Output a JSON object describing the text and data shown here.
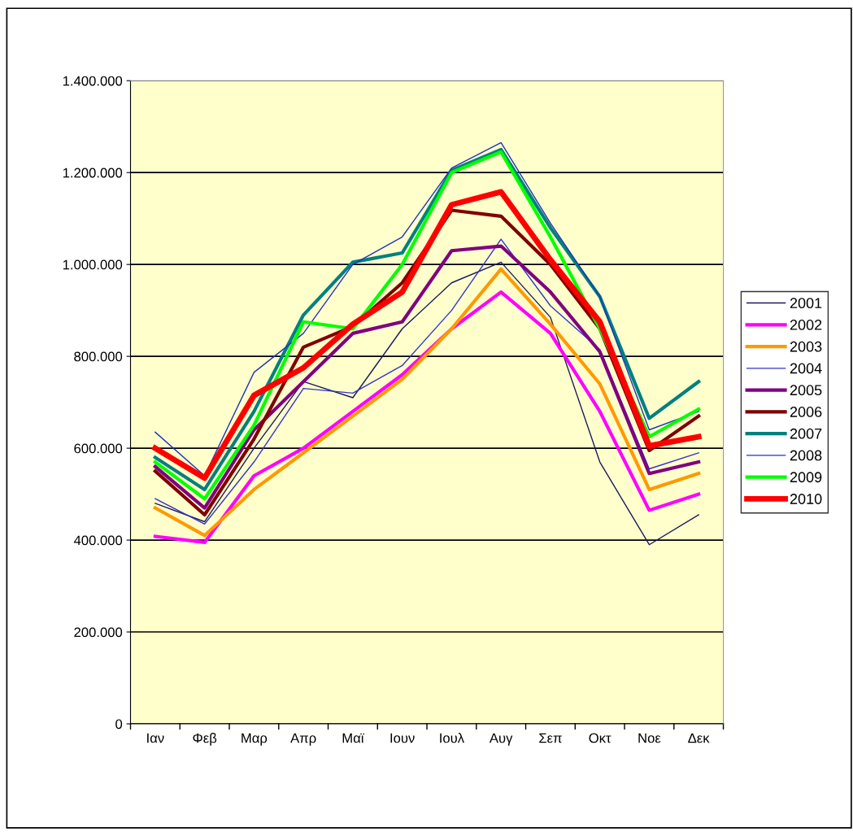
{
  "chart_data": {
    "type": "line",
    "categories": [
      "Ιαν",
      "Φεβ",
      "Μαρ",
      "Απρ",
      "Μαϊ",
      "Ιουν",
      "Ιουλ",
      "Αυγ",
      "Σεπ",
      "Οκτ",
      "Νοε",
      "Δεκ"
    ],
    "ylim": [
      0,
      1400000
    ],
    "yticks": [
      0,
      {
        "value": 200000,
        "label": "200.000"
      },
      {
        "value": 400000,
        "label": "400.000"
      },
      {
        "value": 600000,
        "label": "600.000"
      },
      {
        "value": 800000,
        "label": "800.000"
      },
      {
        "value": 1000000,
        "label": "1.000.000"
      },
      {
        "value": 1200000,
        "label": "1.200.000"
      },
      {
        "value": 1400000,
        "label": "1.400.000"
      }
    ],
    "grid": "y",
    "legend": "right",
    "marker": "none",
    "line_style": "solid",
    "series": [
      {
        "name": "2001",
        "color": "#1a1a5e",
        "values": [
          480000,
          440000,
          600000,
          745000,
          710000,
          860000,
          960000,
          1005000,
          885000,
          570000,
          390000,
          455000
        ]
      },
      {
        "name": "2002",
        "color": "#ff00ff",
        "values": [
          408000,
          395000,
          540000,
          600000,
          680000,
          760000,
          860000,
          940000,
          850000,
          680000,
          465000,
          500000
        ]
      },
      {
        "name": "2003",
        "color": "#ff9900",
        "values": [
          470000,
          410000,
          510000,
          590000,
          670000,
          750000,
          860000,
          990000,
          870000,
          740000,
          510000,
          545000
        ]
      },
      {
        "name": "2004",
        "color": "#3333cc",
        "values": [
          490000,
          435000,
          570000,
          730000,
          720000,
          780000,
          900000,
          1055000,
          910000,
          815000,
          555000,
          590000
        ]
      },
      {
        "name": "2005",
        "color": "#800080",
        "values": [
          560000,
          470000,
          640000,
          745000,
          850000,
          875000,
          1030000,
          1040000,
          940000,
          810000,
          545000,
          570000
        ]
      },
      {
        "name": "2006",
        "color": "#800000",
        "values": [
          550000,
          455000,
          620000,
          820000,
          865000,
          960000,
          1118000,
          1105000,
          1000000,
          860000,
          595000,
          670000
        ]
      },
      {
        "name": "2007",
        "color": "#008080",
        "values": [
          580000,
          510000,
          680000,
          890000,
          1005000,
          1025000,
          1205000,
          1250000,
          1080000,
          930000,
          665000,
          745000
        ]
      },
      {
        "name": "2008",
        "color": "#2233bb",
        "values": [
          635000,
          540000,
          765000,
          850000,
          1000000,
          1060000,
          1210000,
          1265000,
          1090000,
          930000,
          640000,
          680000
        ]
      },
      {
        "name": "2009",
        "color": "#00ff00",
        "values": [
          570000,
          490000,
          650000,
          875000,
          860000,
          1000000,
          1200000,
          1245000,
          1060000,
          860000,
          625000,
          685000
        ]
      },
      {
        "name": "2010",
        "color": "#ff0000",
        "values": [
          600000,
          535000,
          715000,
          775000,
          870000,
          940000,
          1130000,
          1158000,
          1010000,
          875000,
          605000,
          625000
        ]
      }
    ]
  }
}
